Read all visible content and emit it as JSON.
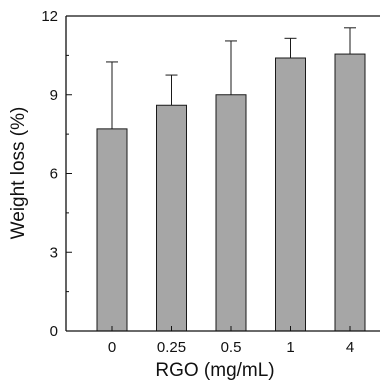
{
  "chart_data": {
    "type": "bar",
    "title": "",
    "xlabel": "RGO (mg/mL)",
    "ylabel": "Weight loss (%)",
    "categories": [
      "0",
      "0.25",
      "0.5",
      "1",
      "4"
    ],
    "values": [
      7.7,
      8.6,
      9.0,
      10.4,
      10.55
    ],
    "error_upper": [
      2.55,
      1.15,
      2.05,
      0.75,
      1.0
    ],
    "error_style": "upper caps only",
    "ylim": [
      0,
      12
    ],
    "yticks": [
      0,
      3,
      6,
      9,
      12
    ],
    "grid": false,
    "legend": "none",
    "bar_color": "#a6a6a6",
    "edge_color": "#1a1a1a"
  }
}
